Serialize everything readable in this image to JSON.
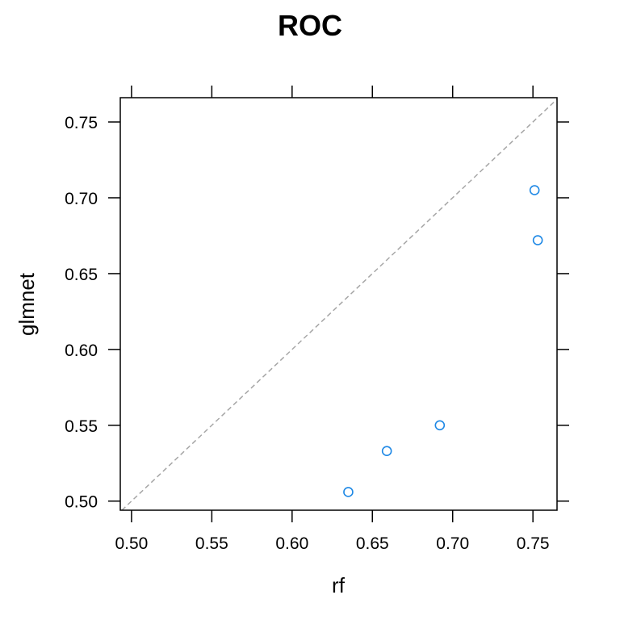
{
  "chart_data": {
    "type": "scatter",
    "title": "ROC",
    "xlabel": "rf",
    "ylabel": "glmnet",
    "xlim": [
      0.493,
      0.765
    ],
    "ylim": [
      0.494,
      0.766
    ],
    "x_ticks": [
      {
        "value": 0.5,
        "label": "0.50"
      },
      {
        "value": 0.55,
        "label": "0.55"
      },
      {
        "value": 0.6,
        "label": "0.60"
      },
      {
        "value": 0.65,
        "label": "0.65"
      },
      {
        "value": 0.7,
        "label": "0.70"
      },
      {
        "value": 0.75,
        "label": "0.75"
      }
    ],
    "y_ticks": [
      {
        "value": 0.5,
        "label": "0.50"
      },
      {
        "value": 0.55,
        "label": "0.55"
      },
      {
        "value": 0.6,
        "label": "0.60"
      },
      {
        "value": 0.65,
        "label": "0.65"
      },
      {
        "value": 0.7,
        "label": "0.70"
      },
      {
        "value": 0.75,
        "label": "0.75"
      }
    ],
    "reference_line": "identity",
    "grid": false,
    "point_color": "#1e88e5",
    "reference_line_color": "#a6a6a6",
    "points": [
      {
        "x": 0.635,
        "y": 0.506
      },
      {
        "x": 0.659,
        "y": 0.533
      },
      {
        "x": 0.692,
        "y": 0.55
      },
      {
        "x": 0.751,
        "y": 0.705
      },
      {
        "x": 0.753,
        "y": 0.672
      }
    ]
  }
}
